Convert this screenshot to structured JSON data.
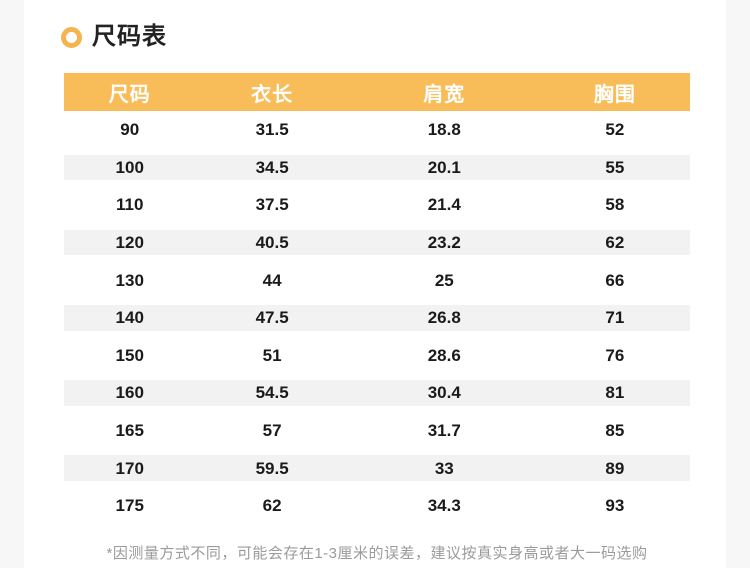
{
  "section": {
    "title": "尺码表",
    "bullet_icon": "orange-ring-icon",
    "note": "*因测量方式不同，可能会存在1-3厘米的误差，建议按真实身高或者大一码选购"
  },
  "table": {
    "columns": [
      "尺码",
      "衣长",
      "肩宽",
      "胸围"
    ],
    "rows": [
      [
        "90",
        "31.5",
        "18.8",
        "52"
      ],
      [
        "100",
        "34.5",
        "20.1",
        "55"
      ],
      [
        "110",
        "37.5",
        "21.4",
        "58"
      ],
      [
        "120",
        "40.5",
        "23.2",
        "62"
      ],
      [
        "130",
        "44",
        "25",
        "66"
      ],
      [
        "140",
        "47.5",
        "26.8",
        "71"
      ],
      [
        "150",
        "51",
        "28.6",
        "76"
      ],
      [
        "160",
        "54.5",
        "30.4",
        "81"
      ],
      [
        "165",
        "57",
        "31.7",
        "85"
      ],
      [
        "170",
        "59.5",
        "33",
        "89"
      ],
      [
        "175",
        "62",
        "34.3",
        "93"
      ]
    ]
  },
  "colors": {
    "accent_orange": "#F8BC58",
    "ring_orange": "#F6B44E",
    "stripe_gray": "#F2F2F2",
    "gutter_gray": "#F7F7F8",
    "header_text": "#FFFFFF",
    "body_text": "#1A1A1A",
    "note_text": "#9B9B9B"
  }
}
